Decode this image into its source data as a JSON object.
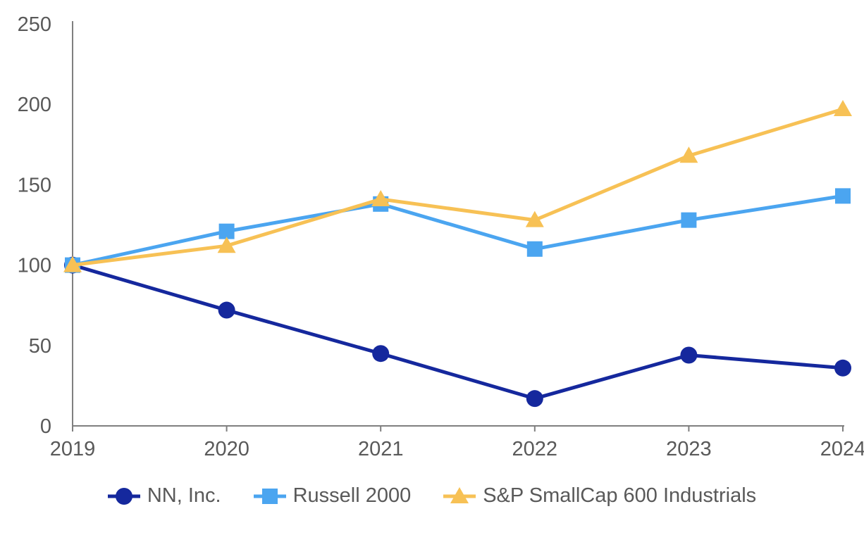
{
  "chart_data": {
    "type": "line",
    "title": "",
    "xlabel": "",
    "ylabel": "",
    "categories": [
      "2019",
      "2020",
      "2021",
      "2022",
      "2023",
      "2024"
    ],
    "series": [
      {
        "name": "NN, Inc.",
        "marker": "circle",
        "color": "#15289D",
        "values": [
          100,
          72,
          45,
          17,
          44,
          36
        ]
      },
      {
        "name": "Russell 2000",
        "marker": "square",
        "color": "#4BA5F0",
        "values": [
          100,
          121,
          138,
          110,
          128,
          143
        ]
      },
      {
        "name": "S&P SmallCap 600 Industrials",
        "marker": "triangle",
        "color": "#F7C155",
        "values": [
          100,
          112,
          141,
          128,
          168,
          197
        ]
      }
    ],
    "ylim": [
      0,
      250
    ],
    "yticks": [
      0,
      50,
      100,
      150,
      200,
      250
    ],
    "grid": false,
    "legend_position": "bottom",
    "axis_color": "#7F7F7F",
    "label_color": "#595959"
  }
}
